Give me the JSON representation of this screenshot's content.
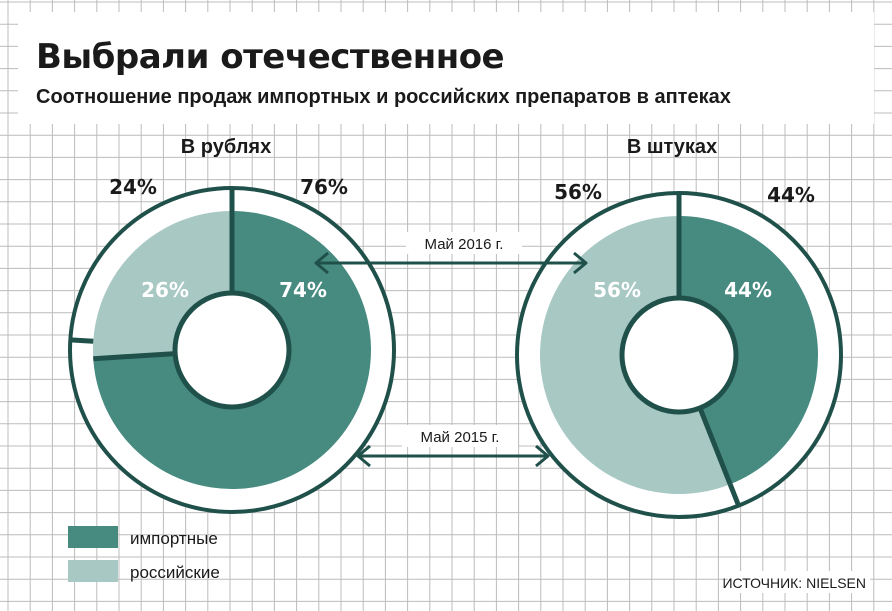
{
  "header": {
    "title": "Выбрали отечественное",
    "subtitle": "Соотношение продаж импортных и российских препаратов в аптеках"
  },
  "colors": {
    "imported": "#468a80",
    "russian": "#a8c8c4",
    "ring": "#20504a",
    "grid": "#bcbcbc"
  },
  "chart_data": [
    {
      "type": "pie",
      "title": "В рублях",
      "series": [
        {
          "name": "Май 2016 г.",
          "ring": "outer",
          "categories": [
            "импортные",
            "российские"
          ],
          "values": [
            76,
            24
          ],
          "labels": [
            "76%",
            "24%"
          ]
        },
        {
          "name": "Май 2015 г.",
          "ring": "inner",
          "categories": [
            "импортные",
            "российские"
          ],
          "values": [
            74,
            26
          ],
          "labels": [
            "74%",
            "26%"
          ]
        }
      ]
    },
    {
      "type": "pie",
      "title": "В штуках",
      "series": [
        {
          "name": "Май 2016 г.",
          "ring": "outer",
          "categories": [
            "импортные",
            "российские"
          ],
          "values": [
            44,
            56
          ],
          "labels": [
            "44%",
            "56%"
          ]
        },
        {
          "name": "Май 2015 г.",
          "ring": "inner",
          "categories": [
            "импортные",
            "российские"
          ],
          "values": [
            44,
            56
          ],
          "labels": [
            "44%",
            "56%"
          ]
        }
      ]
    }
  ],
  "annotations": {
    "outer_arrow_label": "Май 2016 г.",
    "inner_arrow_label": "Май 2015 г."
  },
  "legend": {
    "items": [
      {
        "label": "импортные",
        "color": "#468a80"
      },
      {
        "label": "российские",
        "color": "#a8c8c4"
      }
    ]
  },
  "source": "ИСТОЧНИК: NIELSEN"
}
